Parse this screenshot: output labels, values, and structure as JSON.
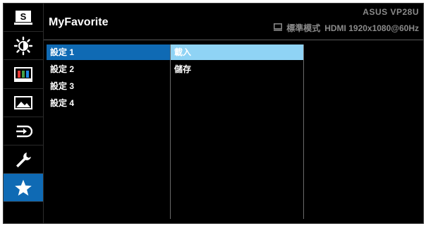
{
  "header": {
    "title": "MyFavorite",
    "model": "ASUS VP28U",
    "mode": "標準模式",
    "input": "HDMI 1920x1080@60Hz"
  },
  "sidebar": {
    "items": [
      {
        "name": "splendid-icon",
        "label": "S"
      },
      {
        "name": "brightness-icon"
      },
      {
        "name": "color-icon"
      },
      {
        "name": "image-icon"
      },
      {
        "name": "input-select-icon"
      },
      {
        "name": "system-setup-icon"
      },
      {
        "name": "favorite-star-icon",
        "active": true
      }
    ]
  },
  "settings": {
    "items": [
      {
        "label": "設定 1",
        "selected": true
      },
      {
        "label": "設定 2"
      },
      {
        "label": "設定 3"
      },
      {
        "label": "設定 4"
      }
    ]
  },
  "actions": {
    "items": [
      {
        "label": "載入",
        "selected": true
      },
      {
        "label": "儲存"
      }
    ]
  },
  "colors": {
    "accent": "#0f6ab4",
    "highlight": "#8fd3f5",
    "background": "#000000",
    "muted_text": "#8a8a8a"
  }
}
